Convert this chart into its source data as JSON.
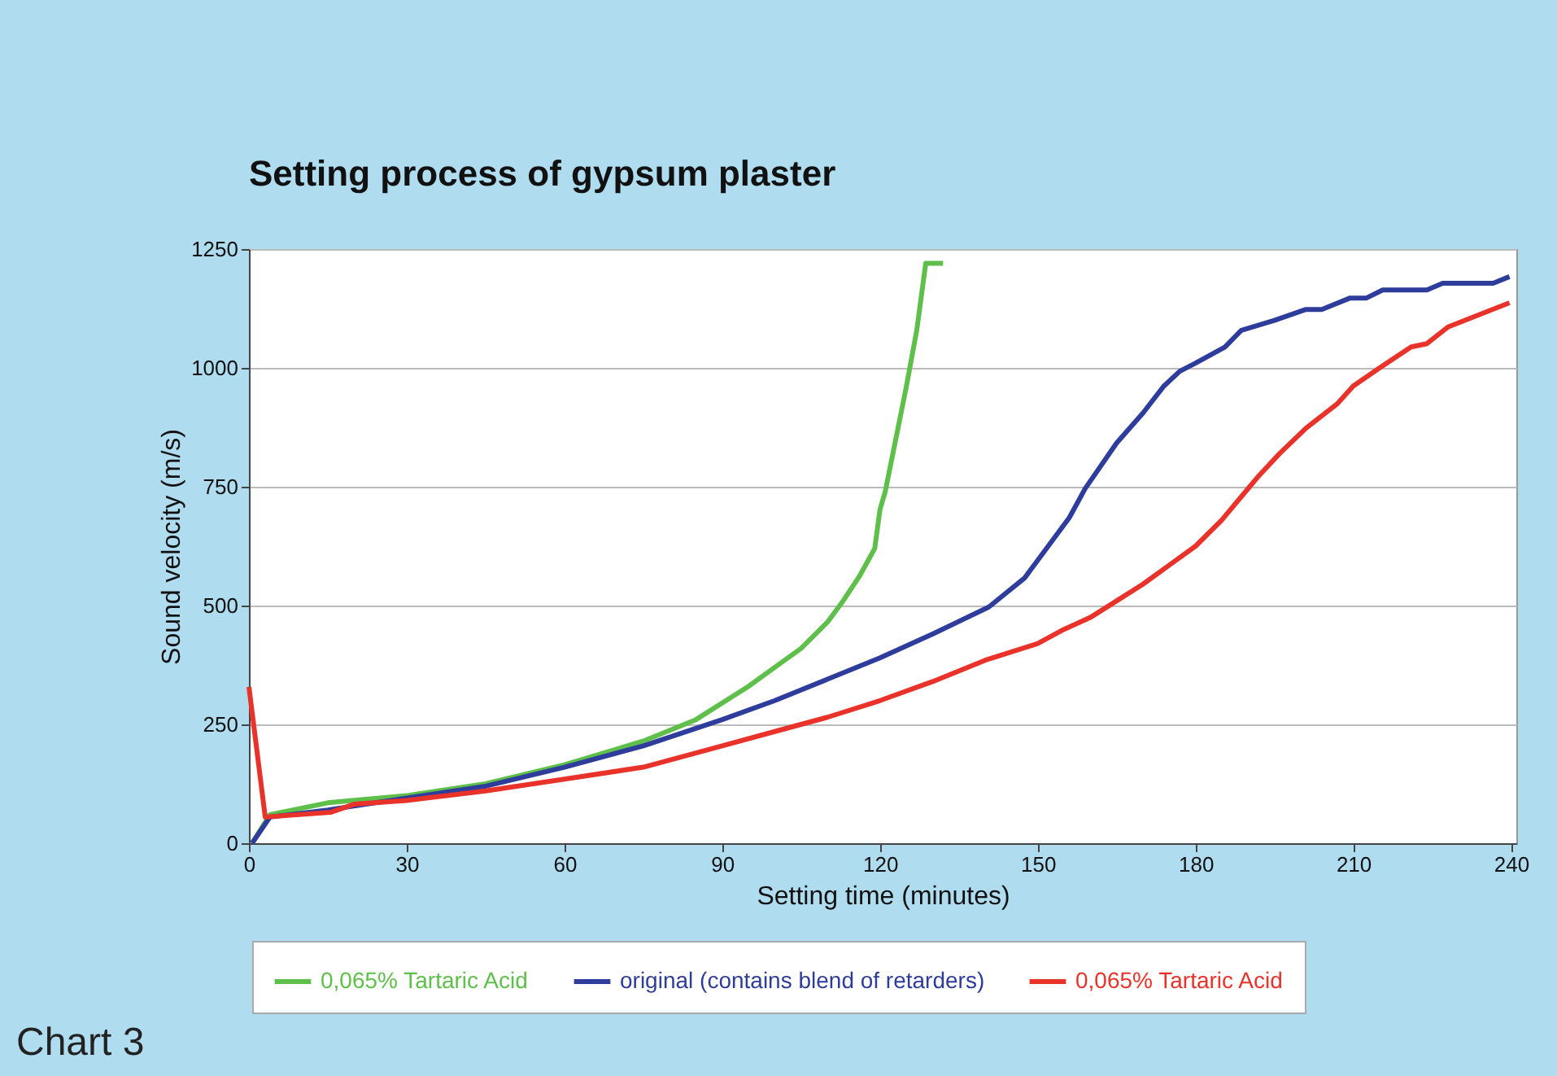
{
  "chart_data": {
    "type": "line",
    "title": "Setting process of gypsum plaster",
    "xlabel": "Setting time (minutes)",
    "ylabel": "Sound velocity (m/s)",
    "xlim": [
      0,
      241
    ],
    "xticks": [
      0,
      30,
      60,
      90,
      120,
      150,
      180,
      210,
      240
    ],
    "ylim": [
      0,
      1250
    ],
    "yticks": [
      0,
      250,
      500,
      750,
      1000,
      1250
    ],
    "grid": "y",
    "legend": "bottom",
    "marker": "none",
    "line_style": "solid",
    "annotations": [
      "Chart 3"
    ],
    "series": [
      {
        "name": "0,065% Tartaric Acid",
        "color": "#5ec04a",
        "x": [
          0.6,
          4,
          15,
          30,
          45,
          60,
          75,
          85,
          95,
          100,
          105,
          110,
          113,
          116,
          119,
          120,
          121,
          123,
          125,
          127,
          128.7,
          132
        ],
        "values": [
          0,
          60,
          85,
          100,
          125,
          165,
          215,
          260,
          330,
          370,
          410,
          465,
          510,
          560,
          620,
          702,
          740,
          850,
          960,
          1080,
          1220,
          1220
        ]
      },
      {
        "name": "original (contains blend of retarders)",
        "color": "#2e3d9c",
        "x": [
          0.6,
          4,
          15,
          30,
          45,
          60,
          75,
          90,
          100,
          110,
          120,
          130,
          140.7,
          147.5,
          156,
          159,
          165,
          170,
          174,
          177,
          180,
          185.6,
          188.7,
          195,
          201,
          204,
          209.4,
          212.5,
          215.6,
          224,
          227,
          236.6,
          239.7
        ],
        "values": [
          0,
          55,
          70,
          95,
          120,
          160,
          205,
          260,
          300,
          345,
          390,
          440,
          497,
          558,
          685,
          746,
          842,
          905,
          962,
          993,
          1010,
          1044,
          1079,
          1100,
          1123,
          1123,
          1147,
          1147,
          1164,
          1164,
          1178,
          1178,
          1192
        ]
      },
      {
        "name": "0,065% Tartaric Acid",
        "color": "#e8322a",
        "x": [
          0,
          3.1,
          15.5,
          20,
          30,
          45,
          60,
          75,
          90,
          100,
          110,
          120,
          130,
          140,
          150,
          155,
          160,
          164.6,
          170,
          175,
          180,
          185,
          188.7,
          191.8,
          196,
          201,
          207,
          210,
          215,
          221,
          224,
          228,
          239.7
        ],
        "values": [
          329,
          55,
          65,
          82,
          90,
          110,
          135,
          160,
          205,
          235,
          265,
          300,
          340,
          385,
          420,
          450,
          475,
          507,
          545,
          585,
          625,
          680,
          729,
          770,
          820,
          873,
          925,
          962,
          1000,
          1044,
          1051,
          1086,
          1137
        ]
      }
    ]
  }
}
